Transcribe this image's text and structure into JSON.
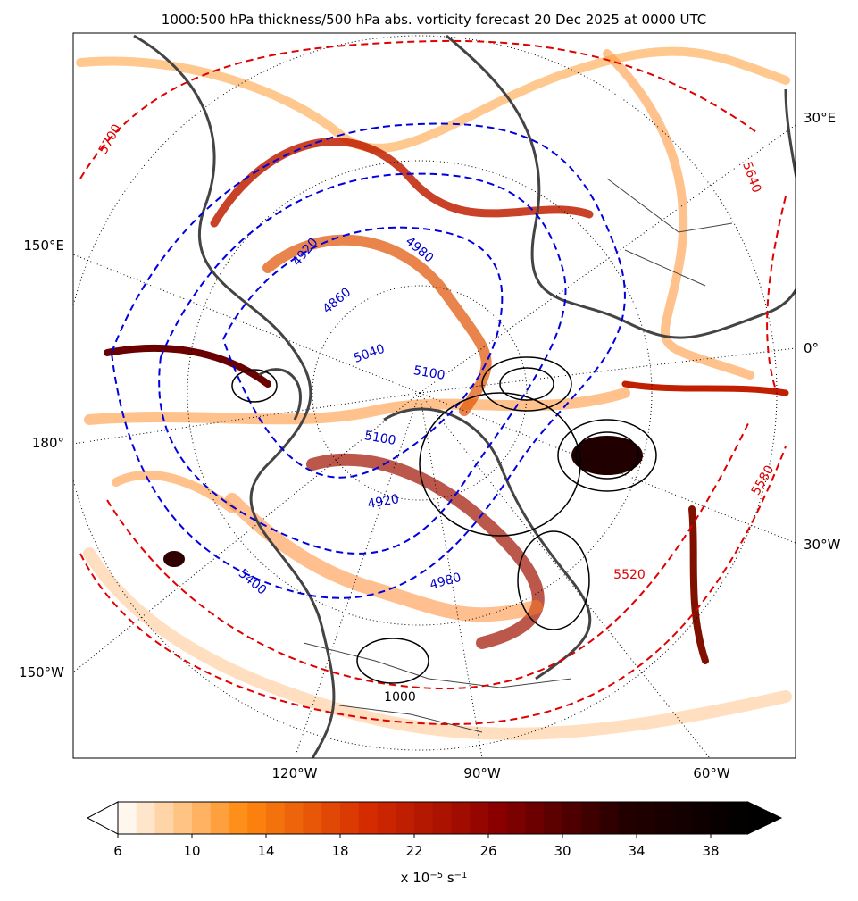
{
  "title": "1000:500 hPa thickness/500 hPa abs. vorticity forecast 20 Dec 2025 at 0000 UTC",
  "grid_labels": [
    "30°E",
    "150°E",
    "0°",
    "180°",
    "30°W",
    "150°W",
    "120°W",
    "90°W",
    "60°W"
  ],
  "contour_labels": [
    5700,
    5640,
    4920,
    4860,
    4980,
    5040,
    5100,
    5100,
    4920,
    5400,
    4980,
    5520,
    5580,
    1000
  ],
  "colorbar": {
    "range": [
      6,
      40
    ],
    "step": 1,
    "ticks": [
      6,
      10,
      14,
      18,
      22,
      26,
      30,
      34,
      38
    ],
    "label_parts": [
      "x 10",
      "−5",
      " s",
      "−1"
    ],
    "colors": [
      "#ffffff",
      "#ff8a10",
      "#d42a00",
      "#8c0000",
      "#250000",
      "#000000"
    ]
  }
}
